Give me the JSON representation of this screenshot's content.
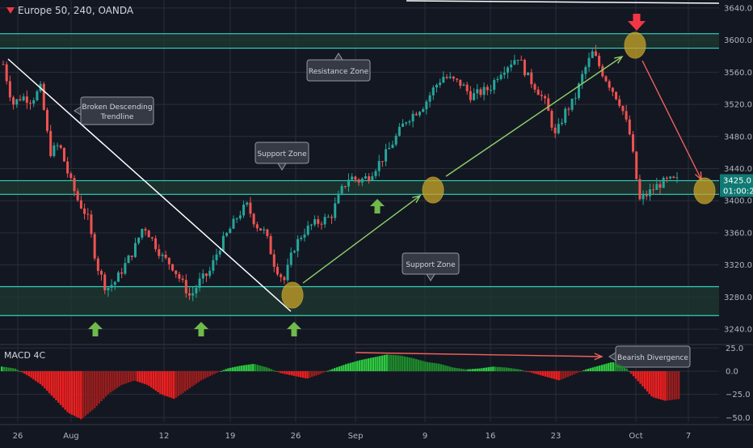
{
  "header": {
    "symbol": "Europe 50, 240, OANDA"
  },
  "macd_label": "MACD 4C",
  "price_badge": {
    "value": "3425.0",
    "timer": "01:00:20"
  },
  "colors": {
    "bg": "#131722",
    "grid": "#2a2e39",
    "up": "#26a69a",
    "down": "#ef5350",
    "zone_line": "#2dd4c0",
    "zone_fill": "#1f3a30",
    "annot": "#7ddc54",
    "bear": "#f23645",
    "marker": "#c9a227"
  },
  "annotations": {
    "trendline": "Broken Descending\nTrendline",
    "resistance": "Resistance Zone",
    "support_mid": "Support Zone",
    "support_low": "Support Zone",
    "divergence": "Bearish Divergence"
  },
  "chart_data": [
    {
      "type": "candlestick",
      "title": "Europe 50, 240, OANDA",
      "y_ticks": [
        3240,
        3280,
        3320,
        3360,
        3400,
        3440,
        3480,
        3520,
        3560,
        3600,
        3640
      ],
      "y_tick_labels": [
        "3240.0",
        "3280.0",
        "3320.0",
        "3360.0",
        "3400.0",
        "3440.0",
        "3480.0",
        "3520.0",
        "3560.0",
        "3600.0",
        "3640.0"
      ],
      "ylim": [
        3222,
        3650
      ],
      "x_tick_labels": [
        "26",
        "Aug",
        "12",
        "19",
        "26",
        "Sep",
        "9",
        "16",
        "23",
        "Oct",
        "7"
      ],
      "close_path": [
        3570,
        3520,
        3530,
        3525,
        3540,
        3460,
        3470,
        3430,
        3400,
        3380,
        3320,
        3290,
        3300,
        3320,
        3340,
        3370,
        3350,
        3330,
        3320,
        3300,
        3280,
        3300,
        3310,
        3340,
        3360,
        3380,
        3395,
        3370,
        3360,
        3320,
        3300,
        3340,
        3360,
        3370,
        3375,
        3380,
        3410,
        3430,
        3425,
        3430,
        3445,
        3460,
        3480,
        3500,
        3510,
        3520,
        3540,
        3555,
        3550,
        3545,
        3530,
        3535,
        3540,
        3560,
        3570,
        3580,
        3555,
        3540,
        3520,
        3480,
        3510,
        3525,
        3560,
        3585,
        3560,
        3540,
        3520,
        3480,
        3400,
        3410,
        3420,
        3425,
        3425
      ],
      "zones": [
        {
          "name": "resistance",
          "low": 3590,
          "high": 3608
        },
        {
          "name": "support-mid",
          "low": 3408,
          "high": 3425
        },
        {
          "name": "support-low",
          "low": 3257,
          "high": 3293
        }
      ],
      "last_price": 3425.0
    },
    {
      "type": "histogram",
      "title": "MACD 4C",
      "y_ticks": [
        25,
        0,
        -25,
        -50
      ],
      "y_tick_labels": [
        "25.0",
        "0.0",
        "−25.0",
        "−50.0"
      ],
      "ylim": [
        -55,
        28
      ],
      "values_path": [
        5,
        3,
        -5,
        -15,
        -30,
        -45,
        -52,
        -40,
        -25,
        -15,
        -10,
        -15,
        -25,
        -30,
        -20,
        -10,
        -3,
        3,
        6,
        8,
        4,
        -2,
        -5,
        -8,
        -3,
        3,
        8,
        12,
        15,
        18,
        17,
        14,
        10,
        8,
        4,
        2,
        3,
        5,
        4,
        2,
        -2,
        -6,
        -10,
        -4,
        2,
        6,
        10,
        4,
        -12,
        -28,
        -32,
        -30
      ]
    }
  ]
}
